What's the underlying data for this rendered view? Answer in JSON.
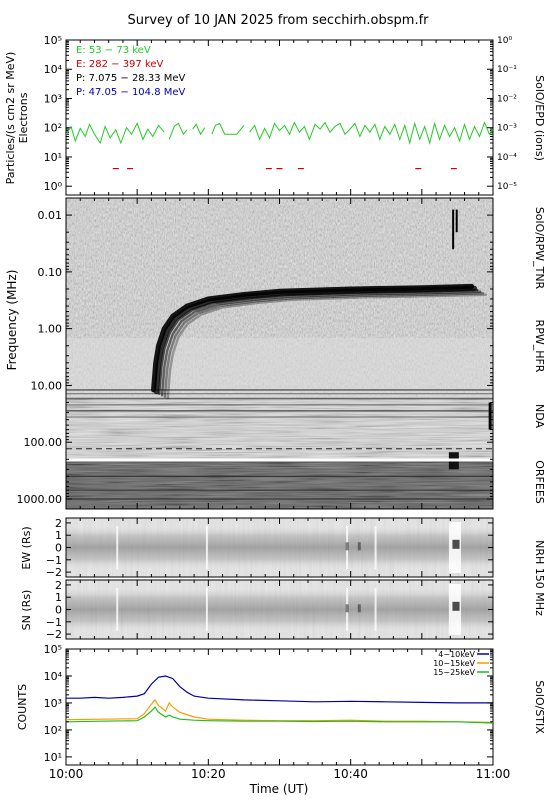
{
  "title": "Survey of 10 JAN 2025 from secchirh.obspm.fr",
  "colors": {
    "ch1": "#22cc22",
    "ch2": "#cc0000",
    "ch3": "#000000",
    "ch4": "#0000bb",
    "stix1": "#0000aa",
    "stix2": "#ff9900",
    "stix3": "#22bb22"
  },
  "chart_data": [
    {
      "id": "epd",
      "type": "line",
      "ylabel": "Particles/(s cm2 sr MeV)",
      "ylabel2": "Electrons",
      "right_label": "SolO/EPD (ions)",
      "yscale": "log",
      "ylim": [
        0.5,
        100000
      ],
      "y_ticks": [
        "10⁰",
        "10¹",
        "10²",
        "10³",
        "10⁴",
        "10⁵"
      ],
      "y2_ticks": [
        "10⁻⁵",
        "10⁻⁴",
        "10⁻³",
        "10⁻²",
        "10⁻¹",
        "10⁰"
      ],
      "legend": [
        {
          "text": "E: 53 − 73 keV",
          "color_key": "ch1"
        },
        {
          "text": "E: 282 − 397 keV",
          "color_key": "ch2"
        },
        {
          "text": "P: 7.075 − 28.33 MeV",
          "color_key": "ch3"
        },
        {
          "text": "P: 47.05 − 104.8 MeV",
          "color_key": "ch4"
        }
      ],
      "series": [
        {
          "color_key": "ch1",
          "segments": [
            [
              [
                0.0,
                60
              ],
              [
                0.7,
                110
              ],
              [
                1.3,
                35
              ],
              [
                2.0,
                95
              ],
              [
                2.7,
                50
              ],
              [
                3.3,
                130
              ],
              [
                4.0,
                60
              ],
              [
                4.8,
                30
              ],
              [
                5.5,
                110
              ],
              [
                6.2,
                45
              ],
              [
                7.0,
                85
              ],
              [
                7.7,
                30
              ],
              [
                8.5,
                100
              ],
              [
                9.2,
                60
              ],
              [
                10.0,
                140
              ],
              [
                10.8,
                40
              ],
              [
                11.5,
                90
              ],
              [
                12.2,
                50
              ],
              [
                13.0,
                120
              ],
              [
                13.8,
                70
              ]
            ],
            [
              [
                14.5,
                40
              ],
              [
                15.2,
                110
              ],
              [
                15.8,
                140
              ],
              [
                16.5,
                60
              ],
              [
                17.0,
                85
              ]
            ],
            [
              [
                17.8,
                90
              ],
              [
                18.3,
                130
              ],
              [
                18.9,
                60
              ],
              [
                19.5,
                100
              ]
            ],
            [
              [
                20.5,
                60
              ],
              [
                21.0,
                120
              ],
              [
                21.6,
                140
              ],
              [
                22.3,
                60
              ],
              [
                23.0,
                60
              ],
              [
                24.0,
                60
              ],
              [
                25.0,
                120
              ]
            ],
            [
              [
                25.8,
                70
              ],
              [
                26.5,
                120
              ],
              [
                27.2,
                40
              ],
              [
                27.9,
                95
              ],
              [
                28.6,
                45
              ],
              [
                29.3,
                140
              ],
              [
                30.0,
                80
              ],
              [
                30.7,
                120
              ],
              [
                31.4,
                60
              ],
              [
                32.1,
                150
              ],
              [
                32.8,
                70
              ],
              [
                33.5,
                110
              ],
              [
                34.2,
                40
              ],
              [
                35.0,
                130
              ],
              [
                35.7,
                90
              ],
              [
                36.4,
                150
              ],
              [
                37.1,
                70
              ],
              [
                37.8,
                110
              ],
              [
                38.5,
                140
              ],
              [
                39.2,
                60
              ],
              [
                39.9,
                90
              ],
              [
                40.6,
                140
              ],
              [
                41.3,
                50
              ],
              [
                42.0,
                120
              ],
              [
                42.7,
                70
              ],
              [
                43.4,
                130
              ],
              [
                44.1,
                40
              ],
              [
                44.8,
                110
              ],
              [
                45.5,
                60
              ],
              [
                46.2,
                130
              ],
              [
                46.9,
                40
              ],
              [
                47.6,
                120
              ],
              [
                48.3,
                30
              ],
              [
                49.0,
                140
              ],
              [
                49.7,
                40
              ],
              [
                50.4,
                110
              ],
              [
                51.1,
                30
              ],
              [
                51.8,
                140
              ],
              [
                52.5,
                40
              ],
              [
                53.2,
                120
              ],
              [
                53.9,
                50
              ],
              [
                54.6,
                100
              ],
              [
                55.3,
                35
              ],
              [
                56.0,
                130
              ],
              [
                56.7,
                40
              ],
              [
                57.4,
                110
              ],
              [
                58.1,
                50
              ],
              [
                58.8,
                150
              ],
              [
                59.5,
                60
              ],
              [
                60.0,
                90
              ]
            ]
          ]
        },
        {
          "color_key": "ch2",
          "points": [
            [
              7.0,
              4
            ],
            [
              9.0,
              4
            ],
            [
              28.5,
              4
            ],
            [
              30.0,
              4
            ],
            [
              33.0,
              4
            ],
            [
              49.5,
              4
            ],
            [
              54.5,
              4
            ]
          ]
        }
      ]
    },
    {
      "id": "spectrogram",
      "type": "heatmap",
      "ylabel": "Frequency (MHz)",
      "yscale": "log",
      "ylim": [
        0.005,
        1500
      ],
      "y_ticks": [
        "0.01",
        "0.10",
        "1.00",
        "10.00",
        "100.00",
        "1000.00"
      ],
      "right_labels": [
        "SolO/RPW_TNR",
        "RPW_HFR",
        "NDA",
        "ORFEES"
      ],
      "bursts": [
        {
          "t": 54.4,
          "f_top": 0.008,
          "f_bottom": 0.04
        },
        {
          "t": 54.9,
          "f_top": 0.008,
          "f_bottom": 0.02
        }
      ],
      "type3_drift": [
        [
          12.3,
          12
        ],
        [
          12.6,
          4
        ],
        [
          13.0,
          2
        ],
        [
          13.8,
          1
        ],
        [
          15.0,
          0.6
        ],
        [
          17.0,
          0.4
        ],
        [
          20.0,
          0.3
        ],
        [
          25.0,
          0.25
        ],
        [
          30.0,
          0.22
        ],
        [
          40.0,
          0.2
        ],
        [
          50.0,
          0.19
        ],
        [
          57.0,
          0.18
        ]
      ]
    },
    {
      "id": "nrh_ew",
      "type": "heatmap",
      "ylabel": "EW (Rs)",
      "right_label": "NRH 150 MHz",
      "ylim": [
        -2.4,
        2.4
      ],
      "y_ticks": [
        "−2",
        "−1",
        "0",
        "1",
        "2"
      ]
    },
    {
      "id": "nrh_sn",
      "type": "heatmap",
      "ylabel": "SN (Rs)",
      "ylim": [
        -2.4,
        2.4
      ],
      "y_ticks": [
        "−2",
        "−1",
        "0",
        "1",
        "2"
      ]
    },
    {
      "id": "stix",
      "type": "line",
      "ylabel": "COUNTS",
      "right_label": "SolO/STIX",
      "yscale": "log",
      "ylim": [
        5,
        100000
      ],
      "y_ticks": [
        "10¹",
        "10²",
        "10³",
        "10⁴",
        "10⁵"
      ],
      "series": [
        {
          "name": "4−10keV",
          "color_key": "stix1",
          "points": [
            [
              0,
              1500
            ],
            [
              2,
              1500
            ],
            [
              4,
              1600
            ],
            [
              6,
              1500
            ],
            [
              8,
              1600
            ],
            [
              10,
              1800
            ],
            [
              11,
              2200
            ],
            [
              12,
              5000
            ],
            [
              13,
              9000
            ],
            [
              14,
              10000
            ],
            [
              15,
              8000
            ],
            [
              16,
              4000
            ],
            [
              17,
              2500
            ],
            [
              18,
              1800
            ],
            [
              20,
              1500
            ],
            [
              25,
              1300
            ],
            [
              30,
              1200
            ],
            [
              35,
              1100
            ],
            [
              40,
              1150
            ],
            [
              45,
              1100
            ],
            [
              50,
              1050
            ],
            [
              55,
              1000
            ],
            [
              60,
              1000
            ]
          ]
        },
        {
          "name": "10−15keV",
          "color_key": "stix2",
          "points": [
            [
              0,
              240
            ],
            [
              5,
              250
            ],
            [
              10,
              260
            ],
            [
              11,
              400
            ],
            [
              12,
              900
            ],
            [
              12.5,
              1300
            ],
            [
              13,
              800
            ],
            [
              14,
              500
            ],
            [
              14.5,
              1000
            ],
            [
              15,
              700
            ],
            [
              16,
              450
            ],
            [
              18,
              300
            ],
            [
              20,
              250
            ],
            [
              25,
              230
            ],
            [
              30,
              220
            ],
            [
              35,
              220
            ],
            [
              40,
              230
            ],
            [
              45,
              210
            ],
            [
              50,
              210
            ],
            [
              55,
              200
            ],
            [
              60,
              190
            ]
          ]
        },
        {
          "name": "15−25keV",
          "color_key": "stix3",
          "points": [
            [
              0,
              200
            ],
            [
              5,
              210
            ],
            [
              10,
              220
            ],
            [
              11,
              300
            ],
            [
              12,
              500
            ],
            [
              12.5,
              700
            ],
            [
              13,
              450
            ],
            [
              14,
              300
            ],
            [
              14.5,
              350
            ],
            [
              15,
              300
            ],
            [
              16,
              250
            ],
            [
              18,
              230
            ],
            [
              20,
              220
            ],
            [
              25,
              210
            ],
            [
              30,
              210
            ],
            [
              35,
              205
            ],
            [
              40,
              210
            ],
            [
              45,
              200
            ],
            [
              50,
              200
            ],
            [
              55,
              200
            ],
            [
              60,
              180
            ]
          ]
        }
      ]
    }
  ],
  "x_axis": {
    "label": "Time (UT)",
    "major_ticks": [
      {
        "t": 0,
        "label": "10:00"
      },
      {
        "t": 20,
        "label": "10:20"
      },
      {
        "t": 40,
        "label": "10:40"
      },
      {
        "t": 60,
        "label": "11:00"
      }
    ]
  }
}
